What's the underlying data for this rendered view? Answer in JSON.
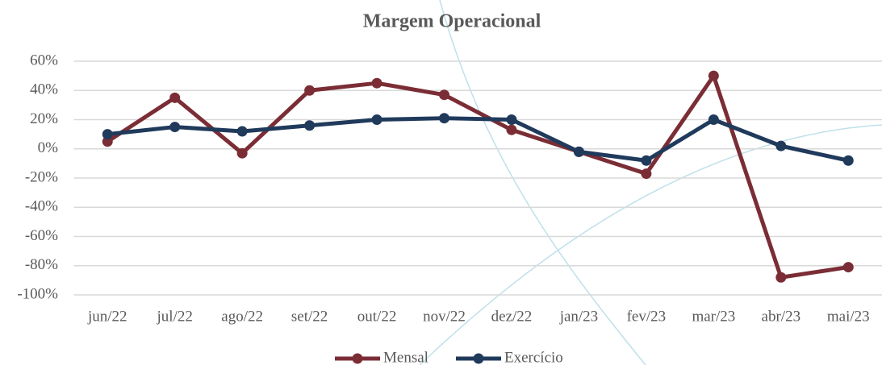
{
  "chart_data": {
    "type": "line",
    "title": "Margem Operacional",
    "categories": [
      "jun/22",
      "jul/22",
      "ago/22",
      "set/22",
      "out/22",
      "nov/22",
      "dez/22",
      "jan/23",
      "fev/23",
      "mar/23",
      "abr/23",
      "mai/23"
    ],
    "series": [
      {
        "name": "Mensal",
        "color": "#7b2d35",
        "values": [
          5,
          35,
          -3,
          40,
          45,
          37,
          13,
          -2,
          -17,
          50,
          -88,
          -81
        ]
      },
      {
        "name": "Exercício",
        "color": "#203a5c",
        "values": [
          10,
          15,
          12,
          16,
          20,
          21,
          20,
          -2,
          -8,
          20,
          2,
          -8
        ]
      }
    ],
    "ylim": [
      -100,
      60
    ],
    "yticks": [
      {
        "value": -100,
        "label": "-100%"
      },
      {
        "value": -80,
        "label": "-80%"
      },
      {
        "value": -60,
        "label": "-60%"
      },
      {
        "value": -40,
        "label": "-40%"
      },
      {
        "value": -20,
        "label": "-20%"
      },
      {
        "value": 0,
        "label": "0%"
      },
      {
        "value": 20,
        "label": "20%"
      },
      {
        "value": 40,
        "label": "40%"
      },
      {
        "value": 60,
        "label": "60%"
      }
    ],
    "grid": true,
    "legend": "bottom"
  }
}
